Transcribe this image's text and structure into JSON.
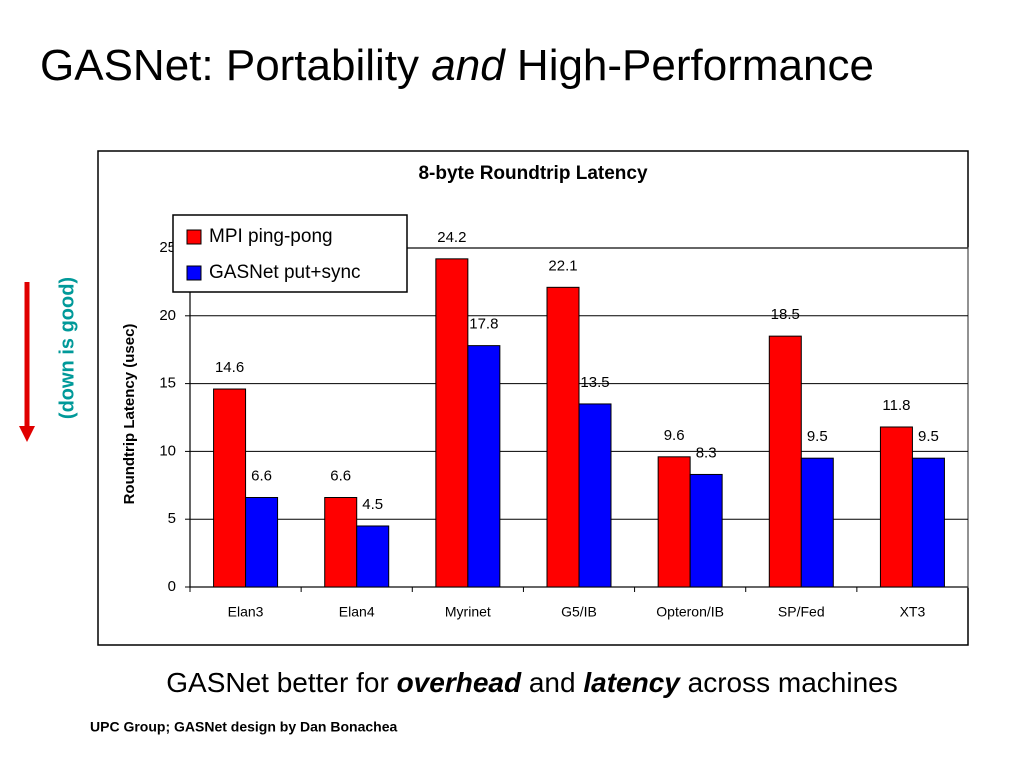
{
  "title_parts": [
    "GASNet: Portability ",
    "and",
    " High-Performance"
  ],
  "side_note": "(down is good)",
  "caption_parts": [
    "GASNet better for ",
    "overhead",
    " and ",
    "latency",
    " across machines"
  ],
  "footer": "UPC Group; GASNet design by Dan Bonachea",
  "chart_data": {
    "type": "bar",
    "title": "8-byte Roundtrip Latency",
    "y_label": "Roundtrip Latency (usec)",
    "categories": [
      "Elan3",
      "Elan4",
      "Myrinet",
      "G5/IB",
      "Opteron/IB",
      "SP/Fed",
      "XT3"
    ],
    "series": [
      {
        "name": "MPI ping-pong",
        "color": "#ff0000",
        "values": [
          14.6,
          6.6,
          24.2,
          22.1,
          9.6,
          18.5,
          11.8
        ]
      },
      {
        "name": "GASNet put+sync",
        "color": "#0000ff",
        "values": [
          6.6,
          4.5,
          17.8,
          13.5,
          8.3,
          9.5,
          9.5
        ]
      }
    ],
    "ylim": [
      0,
      25
    ],
    "yticks": [
      0,
      5,
      10,
      15,
      20,
      25
    ],
    "grid": true,
    "legend": "upper-left"
  }
}
